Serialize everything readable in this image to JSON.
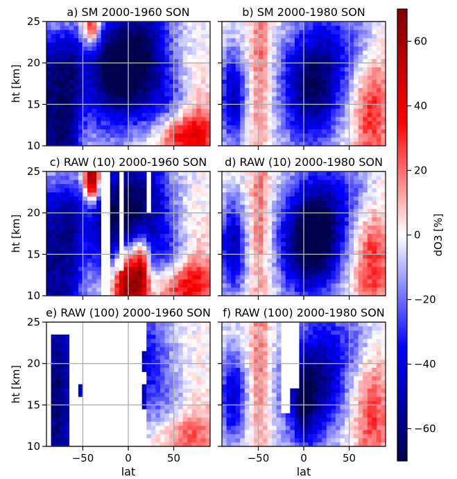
{
  "chart_data": [
    {
      "type": "heatmap",
      "title": "a) SM 2000-1960 SON",
      "xlabel": "",
      "ylabel": "ht [km]",
      "xlim": [
        -90,
        90
      ],
      "ylim": [
        10,
        25
      ],
      "xticks": [
        -50,
        0,
        50
      ],
      "yticks": [
        10,
        15,
        20,
        25
      ],
      "x_tick_labels": [
        "−50",
        "0",
        "50"
      ],
      "y_tick_labels": [
        "10",
        "15",
        "20",
        "25"
      ],
      "show_xtick_labels": false,
      "show_ytick_labels": true,
      "grid": true,
      "pattern": "sm1960"
    },
    {
      "type": "heatmap",
      "title": "b) SM  2000-1980 SON",
      "xlabel": "",
      "ylabel": "",
      "xlim": [
        -90,
        90
      ],
      "ylim": [
        10,
        25
      ],
      "xticks": [
        -50,
        0,
        50
      ],
      "yticks": [
        10,
        15,
        20,
        25
      ],
      "x_tick_labels": [
        "−50",
        "0",
        "50"
      ],
      "y_tick_labels": [
        "10",
        "15",
        "20",
        "25"
      ],
      "show_xtick_labels": false,
      "show_ytick_labels": false,
      "grid": true,
      "pattern": "sm1980"
    },
    {
      "type": "heatmap",
      "title": "c) RAW (10) 2000-1960 SON",
      "xlabel": "",
      "ylabel": "ht [km]",
      "xlim": [
        -90,
        90
      ],
      "ylim": [
        10,
        25
      ],
      "xticks": [
        -50,
        0,
        50
      ],
      "yticks": [
        10,
        15,
        20,
        25
      ],
      "x_tick_labels": [
        "−50",
        "0",
        "50"
      ],
      "y_tick_labels": [
        "10",
        "15",
        "20",
        "25"
      ],
      "show_xtick_labels": false,
      "show_ytick_labels": true,
      "grid": true,
      "pattern": "raw10_1960"
    },
    {
      "type": "heatmap",
      "title": "d) RAW (10) 2000-1980 SON",
      "xlabel": "",
      "ylabel": "",
      "xlim": [
        -90,
        90
      ],
      "ylim": [
        10,
        25
      ],
      "xticks": [
        -50,
        0,
        50
      ],
      "yticks": [
        10,
        15,
        20,
        25
      ],
      "x_tick_labels": [
        "−50",
        "0",
        "50"
      ],
      "y_tick_labels": [
        "10",
        "15",
        "20",
        "25"
      ],
      "show_xtick_labels": false,
      "show_ytick_labels": false,
      "grid": true,
      "pattern": "raw10_1980"
    },
    {
      "type": "heatmap",
      "title": "e) RAW (100) 2000-1960 SON",
      "xlabel": "lat",
      "ylabel": "ht [km]",
      "xlim": [
        -90,
        90
      ],
      "ylim": [
        10,
        25
      ],
      "xticks": [
        -50,
        0,
        50
      ],
      "yticks": [
        10,
        15,
        20,
        25
      ],
      "x_tick_labels": [
        "−50",
        "0",
        "50"
      ],
      "y_tick_labels": [
        "10",
        "15",
        "20",
        "25"
      ],
      "show_xtick_labels": true,
      "show_ytick_labels": true,
      "grid": true,
      "pattern": "raw100_1960"
    },
    {
      "type": "heatmap",
      "title": "f) RAW (100) 2000-1980 SON",
      "xlabel": "lat",
      "ylabel": "",
      "xlim": [
        -90,
        90
      ],
      "ylim": [
        10,
        25
      ],
      "xticks": [
        -50,
        0,
        50
      ],
      "yticks": [
        10,
        15,
        20,
        25
      ],
      "x_tick_labels": [
        "−50",
        "0",
        "50"
      ],
      "y_tick_labels": [
        "10",
        "15",
        "20",
        "25"
      ],
      "show_xtick_labels": true,
      "show_ytick_labels": false,
      "grid": true,
      "pattern": "raw100_1980"
    }
  ],
  "colorbar": {
    "label": "dO3 [%]",
    "range": [
      -70,
      70
    ],
    "ticks": [
      60,
      40,
      20,
      0,
      -20,
      -40,
      -60
    ],
    "tick_labels": [
      "60",
      "40",
      "20",
      "0",
      "−20",
      "−40",
      "−60"
    ],
    "colormap": "seismic",
    "colors": {
      "low": "#00004c",
      "mid_low": "#0000ff",
      "mid": "#ffffff",
      "mid_high": "#ff0000",
      "high": "#800000"
    }
  }
}
